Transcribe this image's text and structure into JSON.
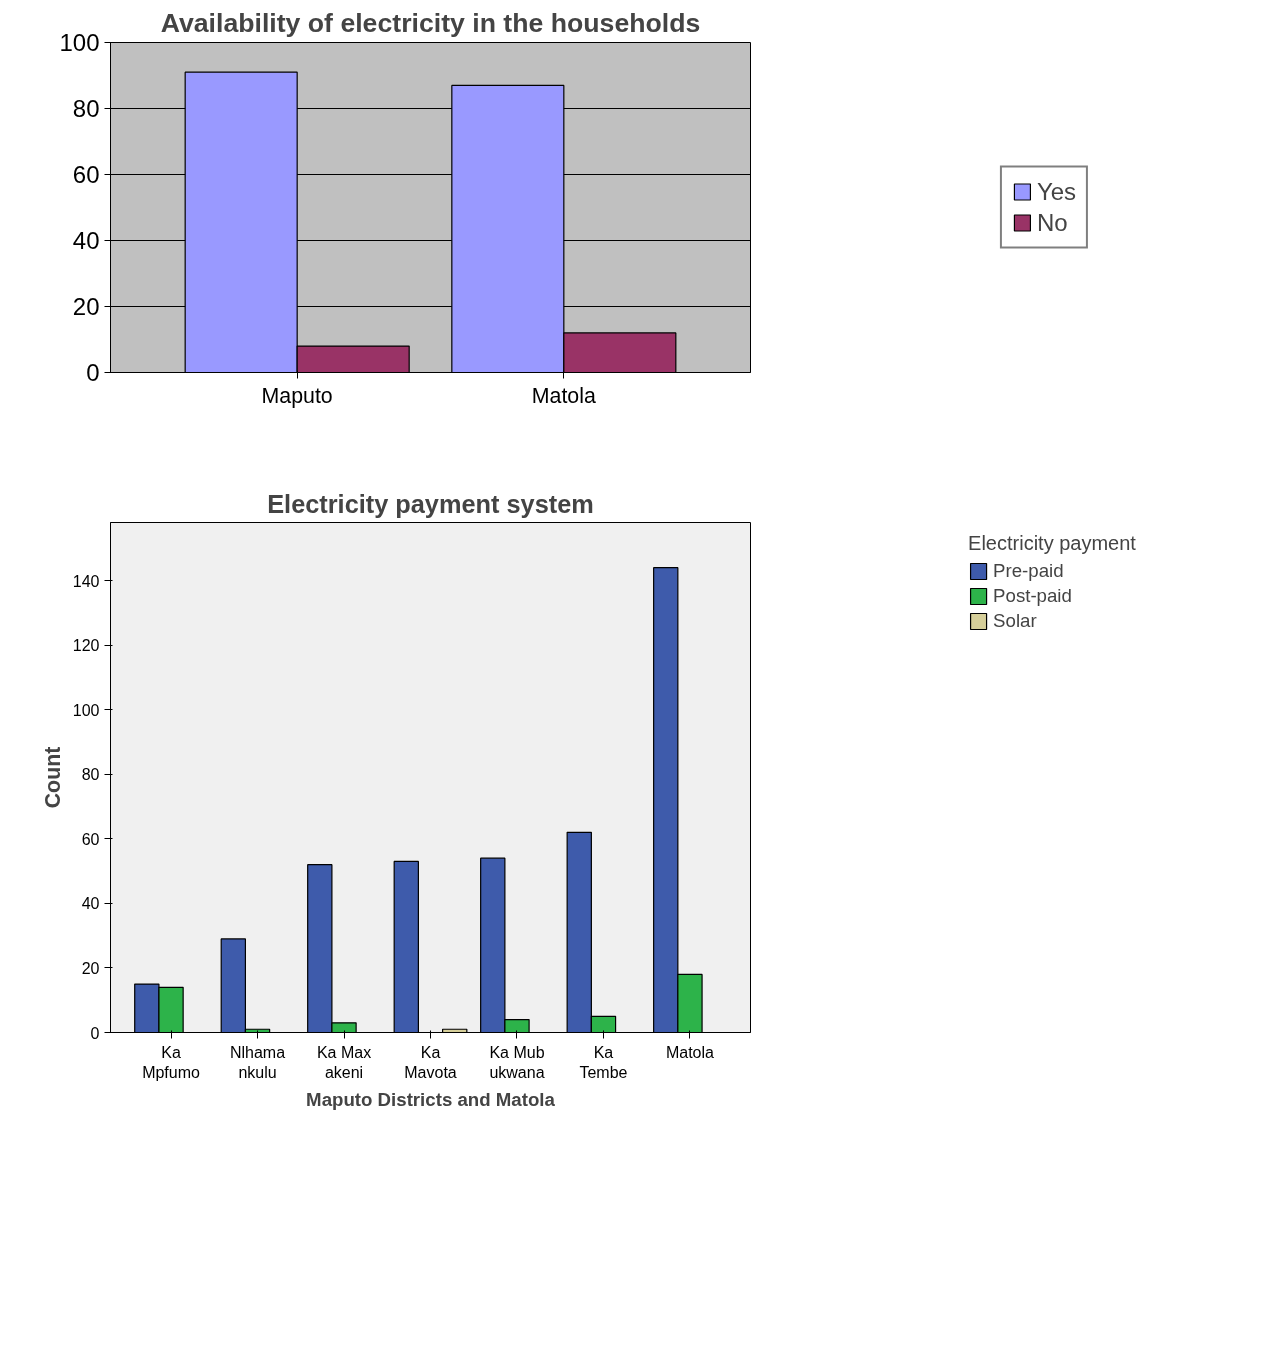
{
  "chart_data": [
    {
      "type": "bar",
      "title": "Availability of electricity in the households",
      "categories": [
        "Maputo",
        "Matola"
      ],
      "series": [
        {
          "name": "Yes",
          "color": "#9999ff",
          "values": [
            91,
            87
          ]
        },
        {
          "name": "No",
          "color": "#993366",
          "values": [
            8,
            12
          ]
        }
      ],
      "ylim": [
        0,
        100
      ],
      "yticks": [
        0,
        20,
        40,
        60,
        80,
        100
      ],
      "grid": "y",
      "legend": "right"
    },
    {
      "type": "bar",
      "title": "Electricity payment system",
      "xlabel": "Maputo Districts and Matola",
      "ylabel": "Count",
      "legend_title": "Electricity payment",
      "categories": [
        "Ka Mpfumo",
        "Nlhamankulu",
        "Ka Maxakeni",
        "Ka Mavota",
        "Ka Mubukwana",
        "Ka Tembe",
        "Matola"
      ],
      "series": [
        {
          "name": "Pre-paid",
          "color": "#3e5bab",
          "values": [
            15,
            29,
            52,
            53,
            54,
            62,
            144
          ]
        },
        {
          "name": "Post-paid",
          "color": "#2db34a",
          "values": [
            14,
            1,
            3,
            null,
            4,
            5,
            18
          ]
        },
        {
          "name": "Solar",
          "color": "#d6cf9a",
          "values": [
            null,
            null,
            null,
            1,
            null,
            null,
            null
          ]
        }
      ],
      "ylim": [
        0,
        158
      ],
      "yticks": [
        0,
        20,
        40,
        60,
        80,
        100,
        120,
        140
      ],
      "grid": false,
      "legend": "top right"
    }
  ]
}
